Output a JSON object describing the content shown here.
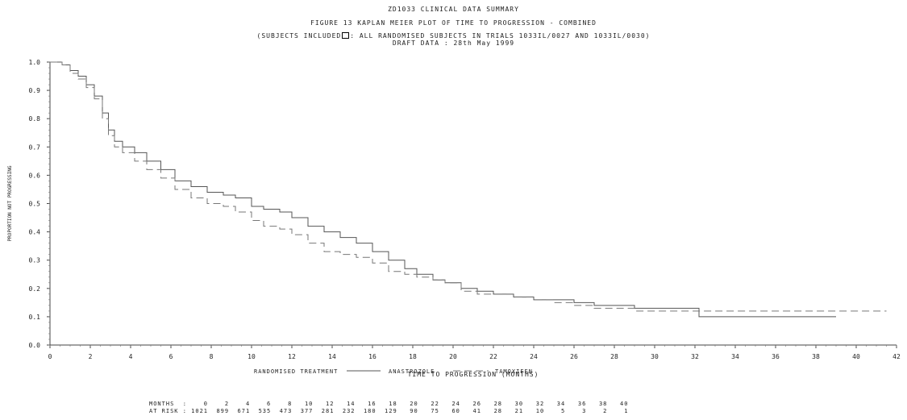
{
  "header": {
    "line1": "ZD1033 CLINICAL DATA SUMMARY",
    "line2": "FIGURE 13  KAPLAN MEIER PLOT OF TIME TO PROGRESSION  - COMBINED",
    "line3_pre": "(SUBJECTS INCLUDED",
    "line3_post": ": ALL RANDOMISED SUBJECTS IN TRIALS 1033IL/0027 AND 1033IL/0030)",
    "line4": "DRAFT DATA : 28th May 1999"
  },
  "chart_data": {
    "type": "line",
    "xlabel": "TIME TO PROGRESSION (MONTHS)",
    "ylabel": "PROPORTION NOT PROGRESSING",
    "xlim": [
      0,
      42
    ],
    "ylim": [
      0,
      1.0
    ],
    "xticks": [
      "0",
      "2",
      "4",
      "6",
      "8",
      "10",
      "12",
      "14",
      "16",
      "18",
      "20",
      "22",
      "24",
      "26",
      "28",
      "30",
      "32",
      "34",
      "36",
      "38",
      "40",
      "42"
    ],
    "yticks": [
      "0.0",
      "0.1",
      "0.2",
      "0.3",
      "0.4",
      "0.5",
      "0.6",
      "0.7",
      "0.8",
      "0.9",
      "1.0"
    ],
    "legend_title": "RANDOMISED TREATMENT",
    "legend_position": "bottom",
    "series": [
      {
        "name": "ANASTROZOLE",
        "color": "#555555",
        "style": "solid",
        "x": [
          0,
          0.6,
          1.0,
          1.4,
          1.8,
          2.2,
          2.6,
          2.9,
          3.2,
          3.6,
          4.2,
          4.8,
          5.5,
          6.2,
          7.0,
          7.8,
          8.6,
          9.2,
          10.0,
          10.6,
          11.4,
          12.0,
          12.8,
          13.6,
          14.4,
          15.2,
          16.0,
          16.8,
          17.6,
          18.2,
          19.0,
          19.6,
          20.4,
          21.2,
          22.0,
          23.0,
          24.0,
          25.0,
          26.0,
          27.0,
          28.0,
          29.0,
          30.0,
          31.0,
          32.2,
          33.0,
          34.0,
          35.0,
          36.0,
          37.0,
          38.0,
          39.0
        ],
        "y": [
          1.0,
          0.99,
          0.97,
          0.95,
          0.92,
          0.88,
          0.82,
          0.76,
          0.72,
          0.7,
          0.68,
          0.65,
          0.62,
          0.58,
          0.56,
          0.54,
          0.53,
          0.52,
          0.49,
          0.48,
          0.47,
          0.45,
          0.42,
          0.4,
          0.38,
          0.36,
          0.33,
          0.3,
          0.27,
          0.25,
          0.23,
          0.22,
          0.2,
          0.19,
          0.18,
          0.17,
          0.16,
          0.16,
          0.15,
          0.14,
          0.14,
          0.13,
          0.13,
          0.13,
          0.1,
          0.1,
          0.1,
          0.1,
          0.1,
          0.1,
          0.1,
          0.1
        ]
      },
      {
        "name": "TAMOXIFEN",
        "color": "#777777",
        "style": "dashed",
        "x": [
          0,
          0.6,
          1.0,
          1.4,
          1.8,
          2.2,
          2.6,
          2.9,
          3.2,
          3.6,
          4.2,
          4.8,
          5.5,
          6.2,
          7.0,
          7.8,
          8.6,
          9.2,
          10.0,
          10.6,
          11.4,
          12.0,
          12.8,
          13.6,
          14.4,
          15.2,
          16.0,
          16.8,
          17.6,
          18.2,
          19.0,
          19.6,
          20.4,
          21.2,
          22.0,
          23.0,
          24.0,
          25.0,
          26.0,
          27.0,
          28.0,
          29.0,
          30.0,
          31.0,
          32.0,
          34.0,
          36.0,
          38.0,
          40.0,
          41.5
        ],
        "y": [
          1.0,
          0.99,
          0.96,
          0.94,
          0.91,
          0.87,
          0.8,
          0.74,
          0.7,
          0.68,
          0.65,
          0.62,
          0.59,
          0.55,
          0.52,
          0.5,
          0.49,
          0.47,
          0.44,
          0.42,
          0.41,
          0.39,
          0.36,
          0.33,
          0.32,
          0.31,
          0.29,
          0.26,
          0.25,
          0.24,
          0.23,
          0.22,
          0.19,
          0.18,
          0.18,
          0.17,
          0.16,
          0.15,
          0.14,
          0.13,
          0.13,
          0.12,
          0.12,
          0.12,
          0.12,
          0.12,
          0.12,
          0.12,
          0.12,
          0.12
        ]
      }
    ],
    "at_risk": {
      "months_label": "MONTHS  :",
      "at_risk_label": "AT RISK :",
      "months": [
        0,
        2,
        4,
        6,
        8,
        10,
        12,
        14,
        16,
        18,
        20,
        22,
        24,
        26,
        28,
        30,
        32,
        34,
        36,
        38,
        40
      ],
      "counts": [
        1021,
        899,
        671,
        535,
        473,
        377,
        281,
        232,
        180,
        129,
        90,
        75,
        60,
        41,
        28,
        21,
        10,
        5,
        3,
        2,
        1
      ]
    }
  }
}
